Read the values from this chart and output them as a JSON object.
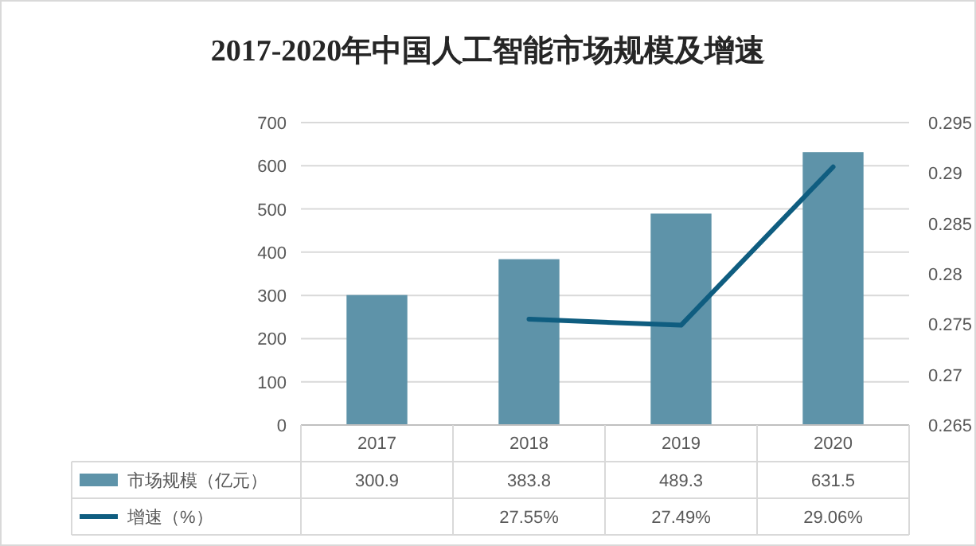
{
  "chart_data": {
    "type": "bar",
    "title": "2017-2020年中国人工智能市场规模及增速",
    "categories": [
      "2017",
      "2018",
      "2019",
      "2020"
    ],
    "series": [
      {
        "name": "市场规模（亿元）",
        "color": "#5e93a9",
        "values": [
          300.9,
          383.8,
          489.3,
          631.5
        ]
      },
      {
        "name": "增速（%）",
        "type": "line",
        "axis": "y2",
        "color": "#0f5d80",
        "values": [
          null,
          0.2755,
          0.2749,
          0.2906
        ],
        "value_labels": [
          null,
          "27.55%",
          "27.49%",
          "29.06%"
        ]
      }
    ],
    "ylim": [
      0,
      700
    ],
    "yticks": [
      0,
      100,
      200,
      300,
      400,
      500,
      600,
      700
    ],
    "y2lim": [
      0.265,
      0.295
    ],
    "y2ticks": [
      0.265,
      0.27,
      0.275,
      0.28,
      0.285,
      0.29,
      0.295
    ],
    "grid": "y",
    "legend": "bottom",
    "data_labels": true
  }
}
